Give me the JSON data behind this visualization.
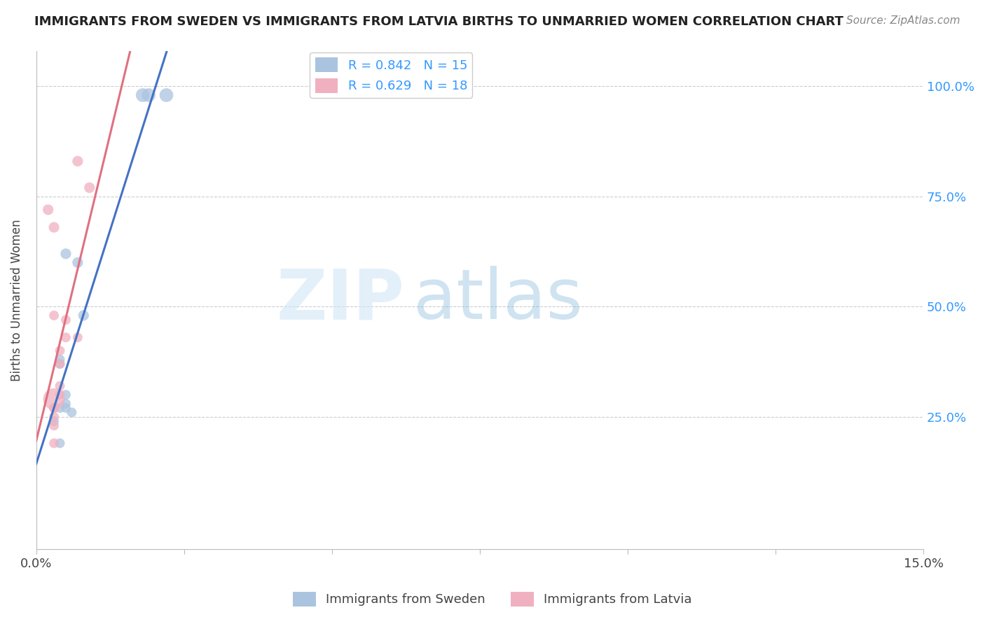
{
  "title": "IMMIGRANTS FROM SWEDEN VS IMMIGRANTS FROM LATVIA BIRTHS TO UNMARRIED WOMEN CORRELATION CHART",
  "source": "Source: ZipAtlas.com",
  "ylabel": "Births to Unmarried Women",
  "ytick_values": [
    0.25,
    0.5,
    0.75,
    1.0
  ],
  "ytick_labels": [
    "25.0%",
    "50.0%",
    "75.0%",
    "100.0%"
  ],
  "xlim": [
    0.0,
    0.15
  ],
  "ylim": [
    -0.05,
    1.08
  ],
  "xtick_positions": [
    0.0,
    0.025,
    0.05,
    0.075,
    0.1,
    0.125,
    0.15
  ],
  "xtick_labels": [
    "0.0%",
    "",
    "",
    "",
    "",
    "",
    "15.0%"
  ],
  "sweden_color": "#aac4e0",
  "sweden_line_color": "#4472c4",
  "latvia_color": "#f0b0c0",
  "latvia_line_color": "#e07080",
  "legend_label_sweden": "R = 0.842   N = 15",
  "legend_label_latvia": "R = 0.629   N = 18",
  "bottom_legend_sweden": "Immigrants from Sweden",
  "bottom_legend_latvia": "Immigrants from Latvia",
  "sweden_scatter_x": [
    0.018,
    0.019,
    0.022,
    0.005,
    0.007,
    0.008,
    0.004,
    0.004,
    0.005,
    0.005,
    0.004,
    0.005,
    0.006,
    0.003,
    0.004
  ],
  "sweden_scatter_y": [
    0.98,
    0.98,
    0.98,
    0.62,
    0.6,
    0.48,
    0.38,
    0.37,
    0.3,
    0.28,
    0.27,
    0.27,
    0.26,
    0.24,
    0.19
  ],
  "sweden_bubble_sizes": [
    200,
    200,
    200,
    120,
    120,
    120,
    100,
    100,
    100,
    100,
    100,
    100,
    100,
    100,
    100
  ],
  "latvia_scatter_x": [
    0.007,
    0.009,
    0.002,
    0.003,
    0.003,
    0.005,
    0.005,
    0.007,
    0.004,
    0.004,
    0.004,
    0.004,
    0.003,
    0.003,
    0.003,
    0.003,
    0.003,
    0.003
  ],
  "latvia_scatter_y": [
    0.83,
    0.77,
    0.72,
    0.68,
    0.48,
    0.47,
    0.43,
    0.43,
    0.4,
    0.37,
    0.32,
    0.3,
    0.29,
    0.27,
    0.27,
    0.25,
    0.23,
    0.19
  ],
  "latvia_bubble_sizes": [
    120,
    120,
    120,
    120,
    100,
    100,
    100,
    100,
    100,
    100,
    100,
    100,
    500,
    100,
    100,
    100,
    100,
    100
  ],
  "watermark_zip": "ZIP",
  "watermark_atlas": "atlas",
  "background_color": "#ffffff",
  "grid_color": "#cccccc",
  "title_fontsize": 13,
  "source_fontsize": 11,
  "tick_fontsize": 13,
  "legend_fontsize": 13
}
